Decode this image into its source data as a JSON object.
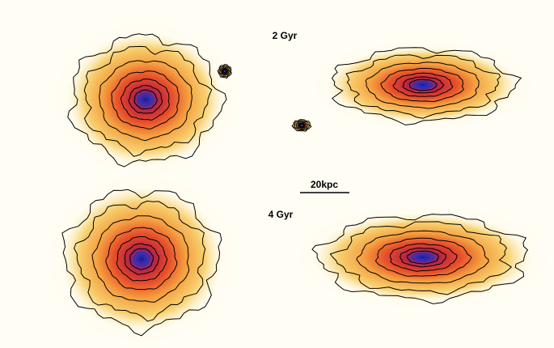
{
  "labels": {
    "top": "2 Gyr",
    "scale": "20kpc",
    "bottom": "4 Gyr"
  }
}
